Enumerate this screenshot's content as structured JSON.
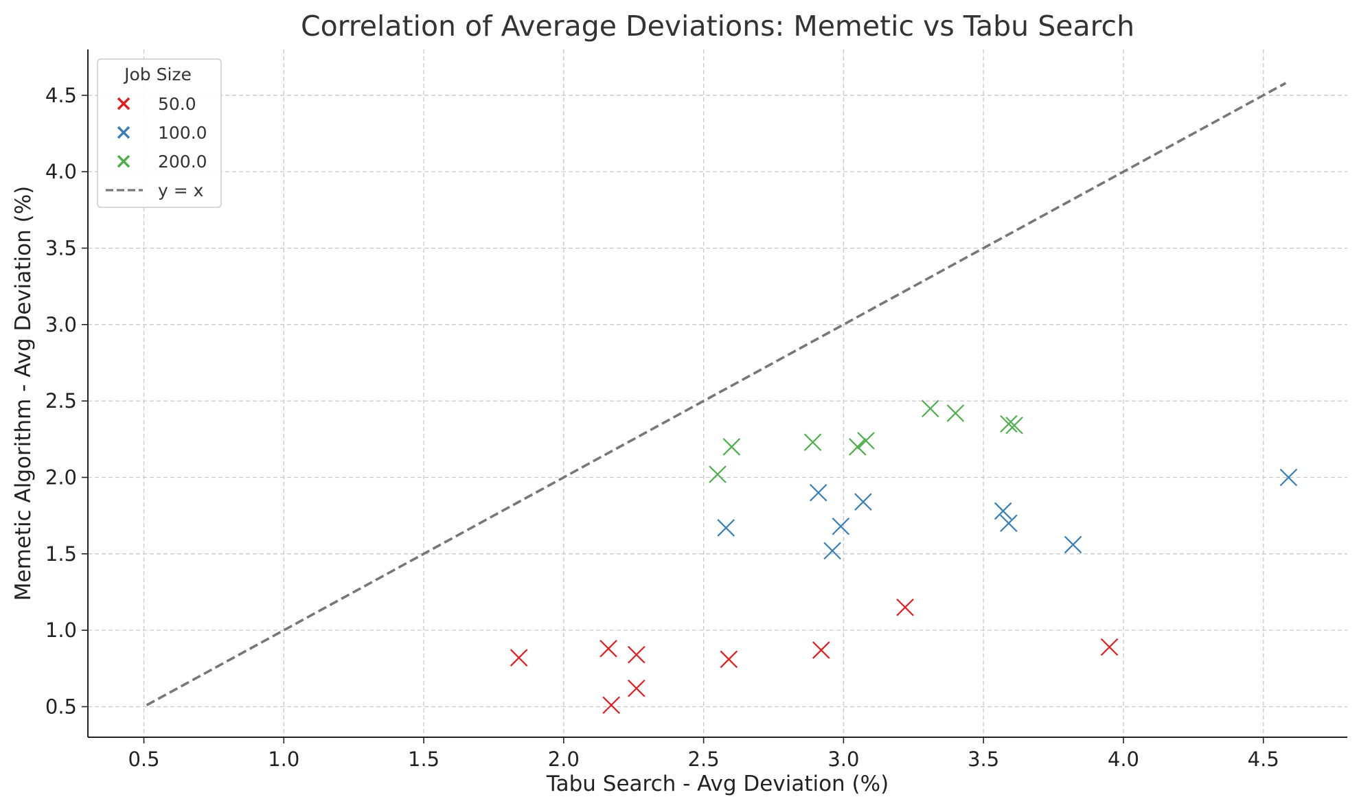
{
  "chart_data": {
    "type": "scatter",
    "title": "Correlation of Average Deviations: Memetic vs Tabu Search",
    "xlabel": "Tabu Search - Avg Deviation (%)",
    "ylabel": "Memetic Algorithm - Avg Deviation (%)",
    "xlim": [
      0.3,
      4.8
    ],
    "ylim": [
      0.3,
      4.8
    ],
    "xticks": [
      "0.5",
      "1.0",
      "1.5",
      "2.0",
      "2.5",
      "3.0",
      "3.5",
      "4.0",
      "4.5"
    ],
    "yticks": [
      "0.5",
      "1.0",
      "1.5",
      "2.0",
      "2.5",
      "3.0",
      "3.5",
      "4.0",
      "4.5"
    ],
    "grid": true,
    "legend": {
      "title": "Job Size",
      "position": "top-left"
    },
    "series": [
      {
        "name": "50.0",
        "color": "#e41a1c",
        "marker": "x",
        "points": [
          [
            1.84,
            0.82
          ],
          [
            2.16,
            0.88
          ],
          [
            2.17,
            0.51
          ],
          [
            2.26,
            0.84
          ],
          [
            2.26,
            0.62
          ],
          [
            2.59,
            0.81
          ],
          [
            2.92,
            0.87
          ],
          [
            3.22,
            1.15
          ],
          [
            3.95,
            0.89
          ]
        ]
      },
      {
        "name": "100.0",
        "color": "#377eb8",
        "marker": "x",
        "points": [
          [
            2.58,
            1.67
          ],
          [
            2.91,
            1.9
          ],
          [
            2.96,
            1.52
          ],
          [
            2.99,
            1.68
          ],
          [
            3.07,
            1.84
          ],
          [
            3.57,
            1.78
          ],
          [
            3.59,
            1.7
          ],
          [
            3.82,
            1.56
          ],
          [
            4.59,
            2.0
          ]
        ]
      },
      {
        "name": "200.0",
        "color": "#4daf4a",
        "marker": "x",
        "points": [
          [
            2.55,
            2.02
          ],
          [
            2.6,
            2.2
          ],
          [
            2.89,
            2.23
          ],
          [
            3.05,
            2.2
          ],
          [
            3.08,
            2.24
          ],
          [
            3.31,
            2.45
          ],
          [
            3.4,
            2.42
          ],
          [
            3.59,
            2.35
          ],
          [
            3.61,
            2.34
          ]
        ]
      }
    ],
    "reference_line": {
      "name": "y = x",
      "color": "#777777",
      "style": "dashed",
      "from": [
        0.51,
        0.51
      ],
      "to": [
        4.58,
        4.58
      ]
    }
  }
}
